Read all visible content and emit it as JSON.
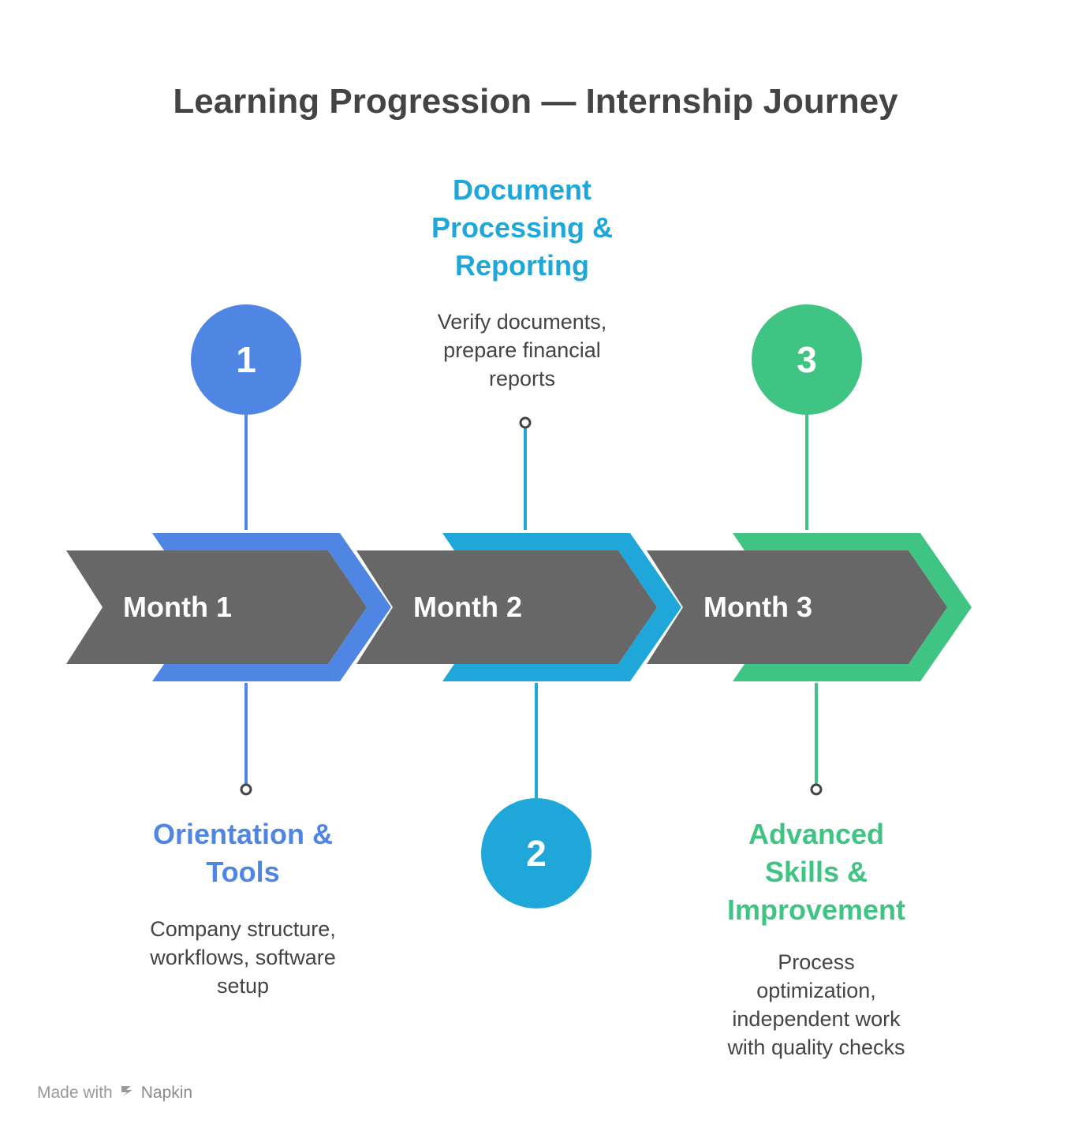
{
  "title": "Learning Progression — Internship Journey",
  "colors": {
    "arrow_body": "#676767",
    "month1": "#4F86E4",
    "month2": "#1FA7D9",
    "month3": "#3FC483",
    "text_dark": "#444444"
  },
  "stages": [
    {
      "number": "1",
      "month": "Month 1",
      "heading": "Orientation &\nTools",
      "description": "Company structure,\nworkflows, software\nsetup"
    },
    {
      "number": "2",
      "month": "Month 2",
      "heading": "Document\nProcessing &\nReporting",
      "description": "Verify documents,\nprepare financial\nreports"
    },
    {
      "number": "3",
      "month": "Month 3",
      "heading": "Advanced\nSkills &\nImprovement",
      "description": "Process\noptimization,\nindependent work\nwith quality checks"
    }
  ],
  "footer": {
    "made_with": "Made with",
    "brand": "Napkin",
    "logo_icon": "napkin-logo-icon"
  }
}
